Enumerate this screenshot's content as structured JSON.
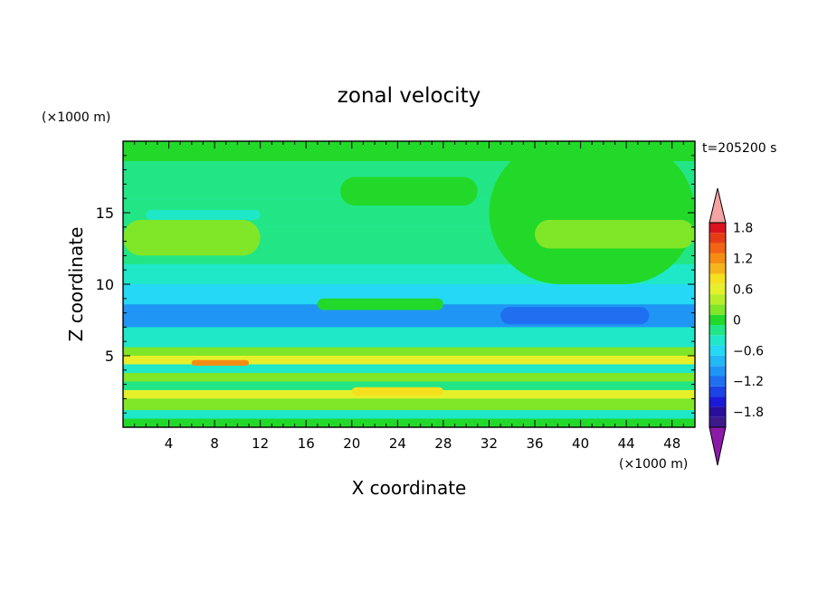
{
  "chart_data": {
    "type": "heatmap",
    "title": "zonal velocity",
    "xlabel": "X coordinate",
    "ylabel": "Z coordinate",
    "x_unit": "(×1000 m)",
    "y_unit": "(×1000 m)",
    "time_label": "t=205200 s",
    "xlim": [
      0,
      50
    ],
    "ylim": [
      0,
      20
    ],
    "x_ticks": [
      4,
      8,
      12,
      16,
      20,
      24,
      28,
      32,
      36,
      40,
      44,
      48
    ],
    "y_ticks": [
      5,
      10,
      15
    ],
    "colorbar": {
      "levels": [
        -2.0,
        -1.8,
        -1.6,
        -1.4,
        -1.2,
        -1.0,
        -0.8,
        -0.6,
        -0.4,
        -0.2,
        0,
        0.2,
        0.4,
        0.6,
        0.8,
        1.0,
        1.2,
        1.4,
        1.6,
        1.8,
        2.0
      ],
      "labels": [
        "1.8",
        "1.2",
        "0.6",
        "0",
        "−0.6",
        "−1.2",
        "−1.8"
      ],
      "label_values": [
        1.8,
        1.2,
        0.6,
        0,
        -0.6,
        -1.2,
        -1.8
      ],
      "colors": [
        "#3d1a8c",
        "#2a0f9c",
        "#1a1ad8",
        "#1a44e6",
        "#1f6ff0",
        "#1f96f5",
        "#22b8f5",
        "#25d8f5",
        "#1ee8c8",
        "#22e686",
        "#22d92a",
        "#7fe628",
        "#b6ef2a",
        "#e6f02a",
        "#f5e01e",
        "#f5b419",
        "#f58c14",
        "#f06414",
        "#e63c14",
        "#d9141e"
      ],
      "over_color": "#f5a3a3",
      "under_color": "#8c1aa8"
    },
    "field_bands": [
      {
        "z": [
          0.0,
          0.6
        ],
        "value": 0.1
      },
      {
        "z": [
          0.6,
          1.2
        ],
        "value": -0.3
      },
      {
        "z": [
          1.2,
          2.0
        ],
        "value": 0.3
      },
      {
        "z": [
          2.0,
          2.6
        ],
        "value": 0.6
      },
      {
        "z": [
          2.6,
          3.2
        ],
        "value": -0.2
      },
      {
        "z": [
          3.2,
          3.8
        ],
        "value": 0.3
      },
      {
        "z": [
          3.8,
          4.4
        ],
        "value": -0.3
      },
      {
        "z": [
          4.4,
          5.0
        ],
        "value": 0.7
      },
      {
        "z": [
          5.0,
          5.6
        ],
        "value": 0.2
      },
      {
        "z": [
          5.6,
          7.0
        ],
        "value": -0.4
      },
      {
        "z": [
          7.0,
          8.6
        ],
        "value": -0.9
      },
      {
        "z": [
          8.6,
          10.0
        ],
        "value": -0.5
      },
      {
        "z": [
          10.0,
          11.4
        ],
        "value": -0.3
      },
      {
        "z": [
          11.4,
          14.0
        ],
        "value": -0.2
      },
      {
        "z": [
          14.0,
          16.0
        ],
        "value": -0.1
      },
      {
        "z": [
          16.0,
          18.6
        ],
        "value": -0.1
      },
      {
        "z": [
          18.6,
          20.0
        ],
        "value": 0.1
      }
    ],
    "field_features": [
      {
        "x": [
          0,
          12
        ],
        "z": [
          12,
          14.5
        ],
        "value": 0.3
      },
      {
        "x": [
          32,
          50
        ],
        "z": [
          10,
          20
        ],
        "value": 0.1
      },
      {
        "x": [
          19,
          31
        ],
        "z": [
          15.5,
          17.5
        ],
        "value": 0.1
      },
      {
        "x": [
          36,
          50
        ],
        "z": [
          12.5,
          14.5
        ],
        "value": 0.3
      },
      {
        "x": [
          33,
          46
        ],
        "z": [
          7.2,
          8.4
        ],
        "value": -1.2
      },
      {
        "x": [
          2,
          12
        ],
        "z": [
          14.5,
          15.2
        ],
        "value": -0.4
      },
      {
        "x": [
          17,
          28
        ],
        "z": [
          8.2,
          9.0
        ],
        "value": 0.1
      },
      {
        "x": [
          6,
          11
        ],
        "z": [
          4.3,
          4.7
        ],
        "value": 1.2
      },
      {
        "x": [
          20,
          28
        ],
        "z": [
          2.2,
          2.8
        ],
        "value": 0.9
      }
    ]
  }
}
